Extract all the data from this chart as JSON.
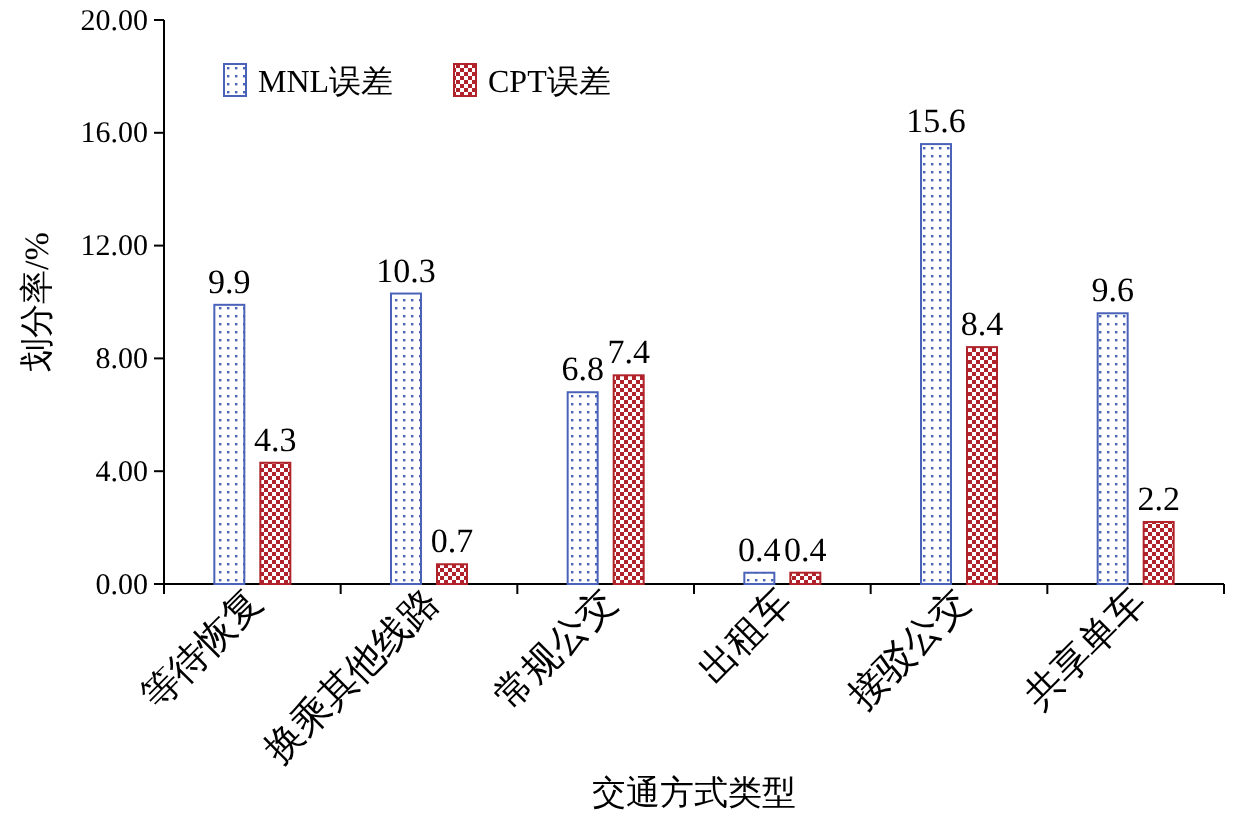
{
  "chart_data": {
    "type": "bar",
    "xlabel": "交通方式类型",
    "ylabel": "划分率/%",
    "categories": [
      "等待恢复",
      "换乘其他线路",
      "常规公交",
      "出租车",
      "接驳公交",
      "共享单车"
    ],
    "series": [
      {
        "name": "MNL误差",
        "color": "#4a62b8",
        "values": [
          9.9,
          10.3,
          6.8,
          0.4,
          15.6,
          9.6
        ]
      },
      {
        "name": "CPT误差",
        "color": "#b0232a",
        "values": [
          4.3,
          0.7,
          7.4,
          0.4,
          8.4,
          2.2
        ]
      }
    ],
    "ylim": [
      0,
      20
    ],
    "yticks": [
      {
        "value": 0,
        "label": "0.00"
      },
      {
        "value": 4,
        "label": "4.00"
      },
      {
        "value": 8,
        "label": "8.00"
      },
      {
        "value": 12,
        "label": "12.00"
      },
      {
        "value": 16,
        "label": "16.00"
      },
      {
        "value": 20,
        "label": "20.00"
      }
    ],
    "data_labels": true,
    "legend": "top left",
    "grid": false
  }
}
